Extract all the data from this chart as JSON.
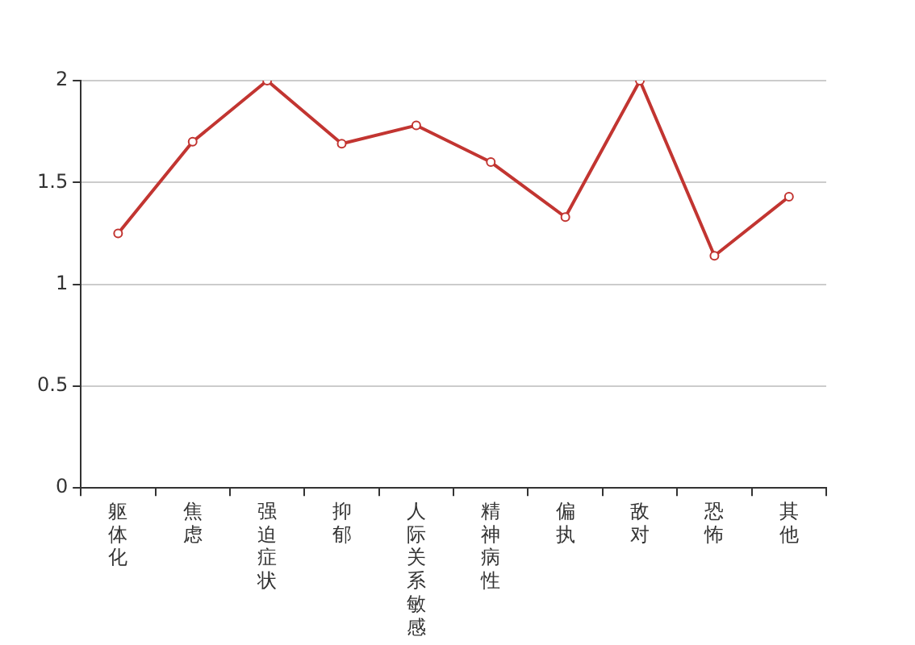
{
  "chart_data": {
    "type": "line",
    "categories": [
      "躯体化",
      "焦虑",
      "强迫症状",
      "抑郁",
      "人际关系敏感",
      "精神病性",
      "偏执",
      "敌对",
      "恐怖",
      "其他"
    ],
    "series": [
      {
        "color": "#c23531",
        "values": [
          1.25,
          1.7,
          2.0,
          1.69,
          1.78,
          1.6,
          1.33,
          2.0,
          1.14,
          1.43
        ]
      }
    ],
    "ylim": [
      0,
      2
    ],
    "yticks": [
      0,
      0.5,
      1,
      1.5,
      2
    ],
    "grid": "y",
    "legend": false,
    "marker": "circle",
    "line_style": "solid"
  }
}
